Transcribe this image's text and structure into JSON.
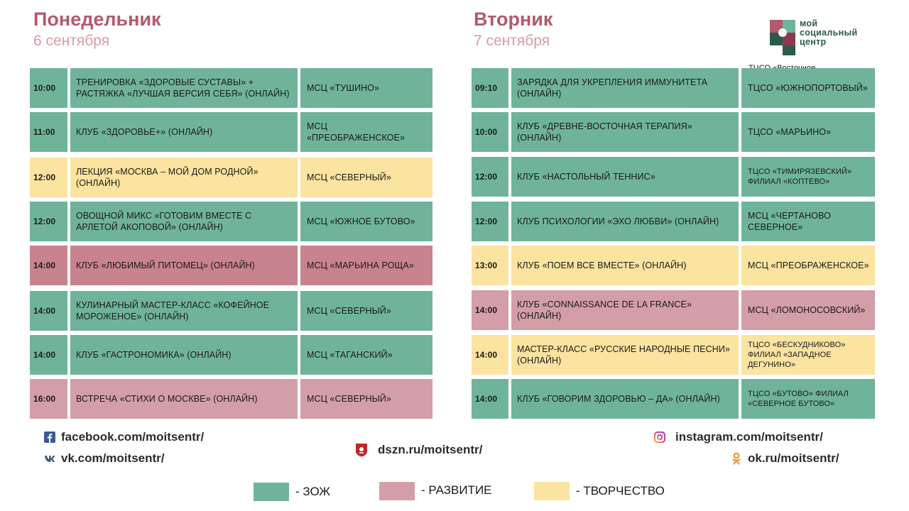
{
  "colors": {
    "zozh": "#6fb49a",
    "razvitie": "#d39ea8",
    "razvitie_dark": "#c8838f",
    "tvorchestvo": "#fbe3a0"
  },
  "logo": {
    "line1": "мой",
    "line2": "социальный",
    "line3": "центр"
  },
  "monday": {
    "title": "Понедельник",
    "date": "6 сентября",
    "rows": [
      {
        "time": "10:00",
        "event": "Тренировка «Здоровые суставы» + растяжка «Лучшая версия себя» (онлайн)",
        "place": "МСЦ «Тушино»",
        "cat": "zozh"
      },
      {
        "time": "11:00",
        "event": "Клуб «Здоровье+» (онлайн)",
        "place": "МСЦ «Преображенское»",
        "cat": "zozh"
      },
      {
        "time": "12:00",
        "event": "Лекция «Москва – мой дом родной» (онлайн)",
        "place": "МСЦ «Северный»",
        "cat": "tvorchestvo"
      },
      {
        "time": "12:00",
        "event": "Овощной микс «Готовим вместе с Арлетой Акоповой» (онлайн)",
        "place": "МСЦ «Южное Бутово»",
        "cat": "zozh"
      },
      {
        "time": "14:00",
        "event": "Клуб «Любимый питомец» (онлайн)",
        "place": "МСЦ «Марьина роща»",
        "cat": "razvitie_dark"
      },
      {
        "time": "14:00",
        "event": "Кулинарный мастер-класс «Кофейное мороженое» (онлайн)",
        "place": "МСЦ «Северный»",
        "cat": "zozh"
      },
      {
        "time": "14:00",
        "event": "Клуб «Гастрономика» (онлайн)",
        "place": "МСЦ «Таганский»",
        "cat": "zozh"
      },
      {
        "time": "16:00",
        "event": "Встреча «Стихи о Москве» (онлайн)",
        "place": "МСЦ «Северный»",
        "cat": "razvitie"
      }
    ]
  },
  "tuesday": {
    "title": "Вторник",
    "date": "7 сентября",
    "cut_text": "ТЦСО «Восточное",
    "rows": [
      {
        "time": "09:10",
        "event": "Зарядка для укрепления иммунитета (онлайн)",
        "place": "ТЦСО «Южнопортовый»",
        "cat": "zozh"
      },
      {
        "time": "10:00",
        "event": "Клуб «Древне-восточная терапия» (онлайн)",
        "place": "ТЦСО «Марьино»",
        "cat": "zozh"
      },
      {
        "time": "12:00",
        "event": "Клуб «Настольный теннис»",
        "place": "ТЦСО «Тимирязевский» филиал «Коптево»",
        "cat": "zozh",
        "small": true
      },
      {
        "time": "12:00",
        "event": "Клуб психологии «Эхо любви» (онлайн)",
        "place": "МСЦ «Чертаново Северное»",
        "cat": "zozh"
      },
      {
        "time": "13:00",
        "event": "Клуб «Поем все вместе» (онлайн)",
        "place": "МСЦ «Преображенское»",
        "cat": "tvorchestvo"
      },
      {
        "time": "14:00",
        "event": "Клуб «Connaissance de la France» (онлайн)",
        "place": "МСЦ «Ломоносовский»",
        "cat": "razvitie"
      },
      {
        "time": "14:00",
        "event": "Мастер-класс «Русские народные песни» (онлайн)",
        "place": "ТЦСО «Бескудниково» филиал «Западное Дегунино»",
        "cat": "tvorchestvo",
        "small": true
      },
      {
        "time": "14:00",
        "event": "Клуб «Говорим здоровью – да» (онлайн)",
        "place": "ТЦСО «Бутово» филиал «Северное Бутово»",
        "cat": "zozh",
        "small": true
      }
    ]
  },
  "links": {
    "facebook": "facebook.com/moitsentr/",
    "vk": "vk.com/moitsentr/",
    "dszn": "dszn.ru/moitsentr/",
    "instagram": "instagram.com/moitsentr/",
    "ok": "ok.ru/moitsentr/"
  },
  "legend": {
    "zozh": "- ЗОЖ",
    "razvitie": "- РАЗВИТИЕ",
    "tvorchestvo": "- ТВОРЧЕСТВО"
  }
}
